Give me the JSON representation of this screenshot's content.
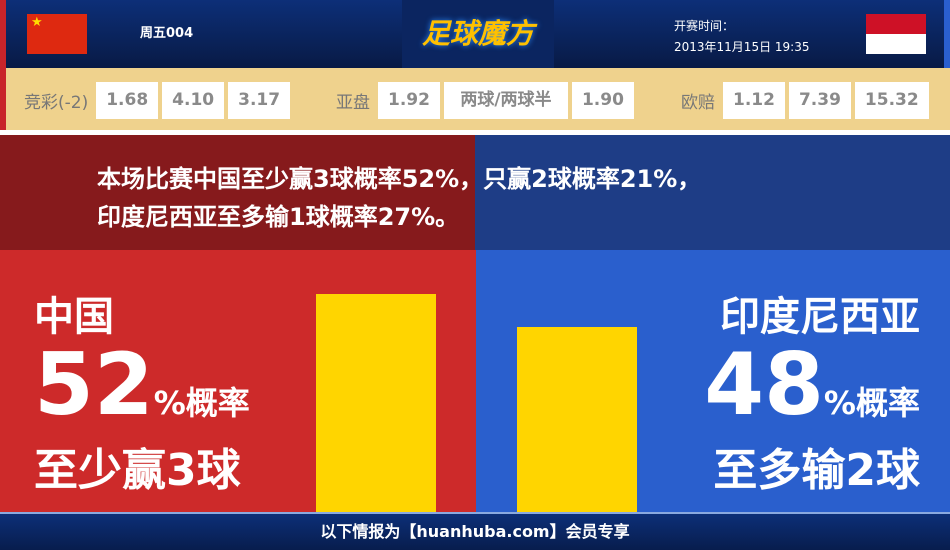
{
  "header": {
    "match_id": "周五004",
    "logo_text": "足球魔方",
    "time_label": "开赛时间：",
    "time_value": "2013年11月15日 19:35",
    "home_flag": "china-flag",
    "away_flag": "indonesia-flag"
  },
  "odds": {
    "jingcai": {
      "label": "竞彩(-2)",
      "values": [
        "1.68",
        "4.10",
        "3.17"
      ]
    },
    "yapan": {
      "label": "亚盘",
      "values": [
        "1.92",
        "两球/两球半",
        "1.90"
      ]
    },
    "oupei": {
      "label": "欧赔",
      "values": [
        "1.12",
        "7.39",
        "15.32"
      ]
    }
  },
  "message": {
    "line1": "本场比赛中国至少赢3球概率52%，只赢2球概率21%，",
    "line2": "印度尼西亚至多输1球概率27%。"
  },
  "home": {
    "team": "中国",
    "percent": "52",
    "percent_suffix": "%概率",
    "desc": "至少赢3球",
    "bar_value": 52,
    "color": "#cd2a2a"
  },
  "away": {
    "team": "印度尼西亚",
    "percent": "48",
    "percent_suffix": "%概率",
    "desc": "至多输2球",
    "bar_value": 48,
    "color": "#2a5fcd"
  },
  "bar_color": "#ffd500",
  "footer": {
    "text": "以下情报为【huanhuba.com】会员专享"
  }
}
